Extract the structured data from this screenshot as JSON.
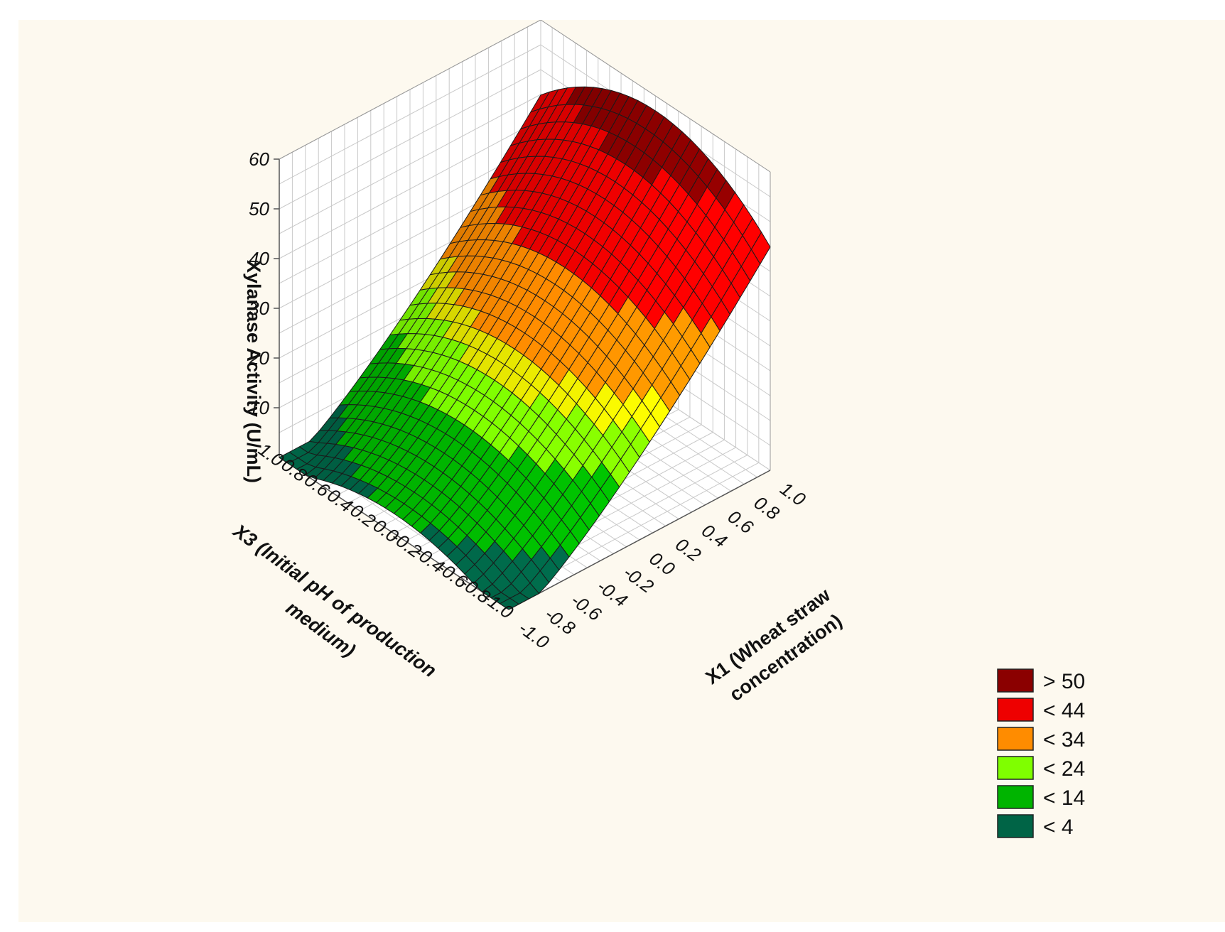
{
  "chart_data": {
    "type": "surface3d",
    "zlabel": "Xylanase Activity (U/mL)",
    "x1label_line1": "X1 (Wheat straw",
    "x1label_line2": "concentration)",
    "x3label_line1": "X3 (Initial pH of production",
    "x3label_line2": "medium)",
    "z_ticks": [
      "10",
      "20",
      "30",
      "40",
      "50",
      "60"
    ],
    "z_tick_values": [
      10,
      20,
      30,
      40,
      50,
      60
    ],
    "x1_ticks": [
      "-1.0",
      "-0.8",
      "-0.6",
      "-0.4",
      "-0.2",
      "0.0",
      "0.2",
      "0.4",
      "0.6",
      "0.8",
      "1.0"
    ],
    "x3_ticks": [
      "1.0",
      "0.8",
      "0.6",
      "0.4",
      "0.2",
      "0.0",
      "-0.2",
      "-0.4",
      "-0.6",
      "-0.8",
      "-1.0"
    ],
    "x1_range": [
      -1,
      1
    ],
    "x3_range": [
      -1,
      1
    ],
    "z_range": [
      0,
      60
    ],
    "grid": true,
    "legend_position": "bottom-right",
    "surface_corners": [
      {
        "x1": -1,
        "x3": 1,
        "z": 4
      },
      {
        "x1": -1,
        "x3": -1,
        "z": 4
      },
      {
        "x1": 1,
        "x3": 1,
        "z": 46
      },
      {
        "x1": 1,
        "x3": -1,
        "z": 46
      }
    ],
    "surface_peak": {
      "x1": 1,
      "x3": 0,
      "z": 57
    },
    "legend": [
      {
        "label": "> 50",
        "color": "#8b0000"
      },
      {
        "label": "< 44",
        "color": "#ee0000"
      },
      {
        "label": "< 34",
        "color": "#ff8c00"
      },
      {
        "label": "< 24",
        "color": "#7fff00"
      },
      {
        "label": "< 14",
        "color": "#00b400"
      },
      {
        "label": "< 4",
        "color": "#006446"
      }
    ]
  }
}
